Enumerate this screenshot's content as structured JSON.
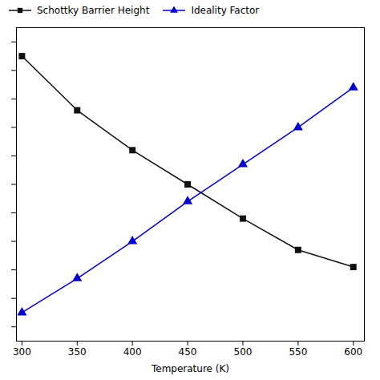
{
  "chart_data": {
    "type": "line",
    "xlabel": "Temperature (K)",
    "x": [
      300,
      350,
      400,
      450,
      500,
      550,
      600
    ],
    "series": [
      {
        "name": "Schottky Barrier Height",
        "color": "#111111",
        "marker": "square",
        "values": [
          0.95,
          0.76,
          0.62,
          0.5,
          0.38,
          0.27,
          0.21
        ]
      },
      {
        "name": "Ideality Factor",
        "color": "#0000cc",
        "marker": "triangle",
        "values": [
          0.05,
          0.17,
          0.3,
          0.44,
          0.57,
          0.7,
          0.84
        ]
      }
    ],
    "xlim": [
      295,
      610
    ],
    "ylim": [
      -0.05,
      1.05
    ],
    "xticks": [
      300,
      350,
      400,
      450,
      500,
      550,
      600
    ],
    "yticks": [
      0,
      0.1,
      0.2,
      0.3,
      0.4,
      0.5,
      0.6,
      0.7,
      0.8,
      0.9,
      1.0
    ],
    "tick_labels": "x",
    "legend": "upper left",
    "grid": false
  }
}
